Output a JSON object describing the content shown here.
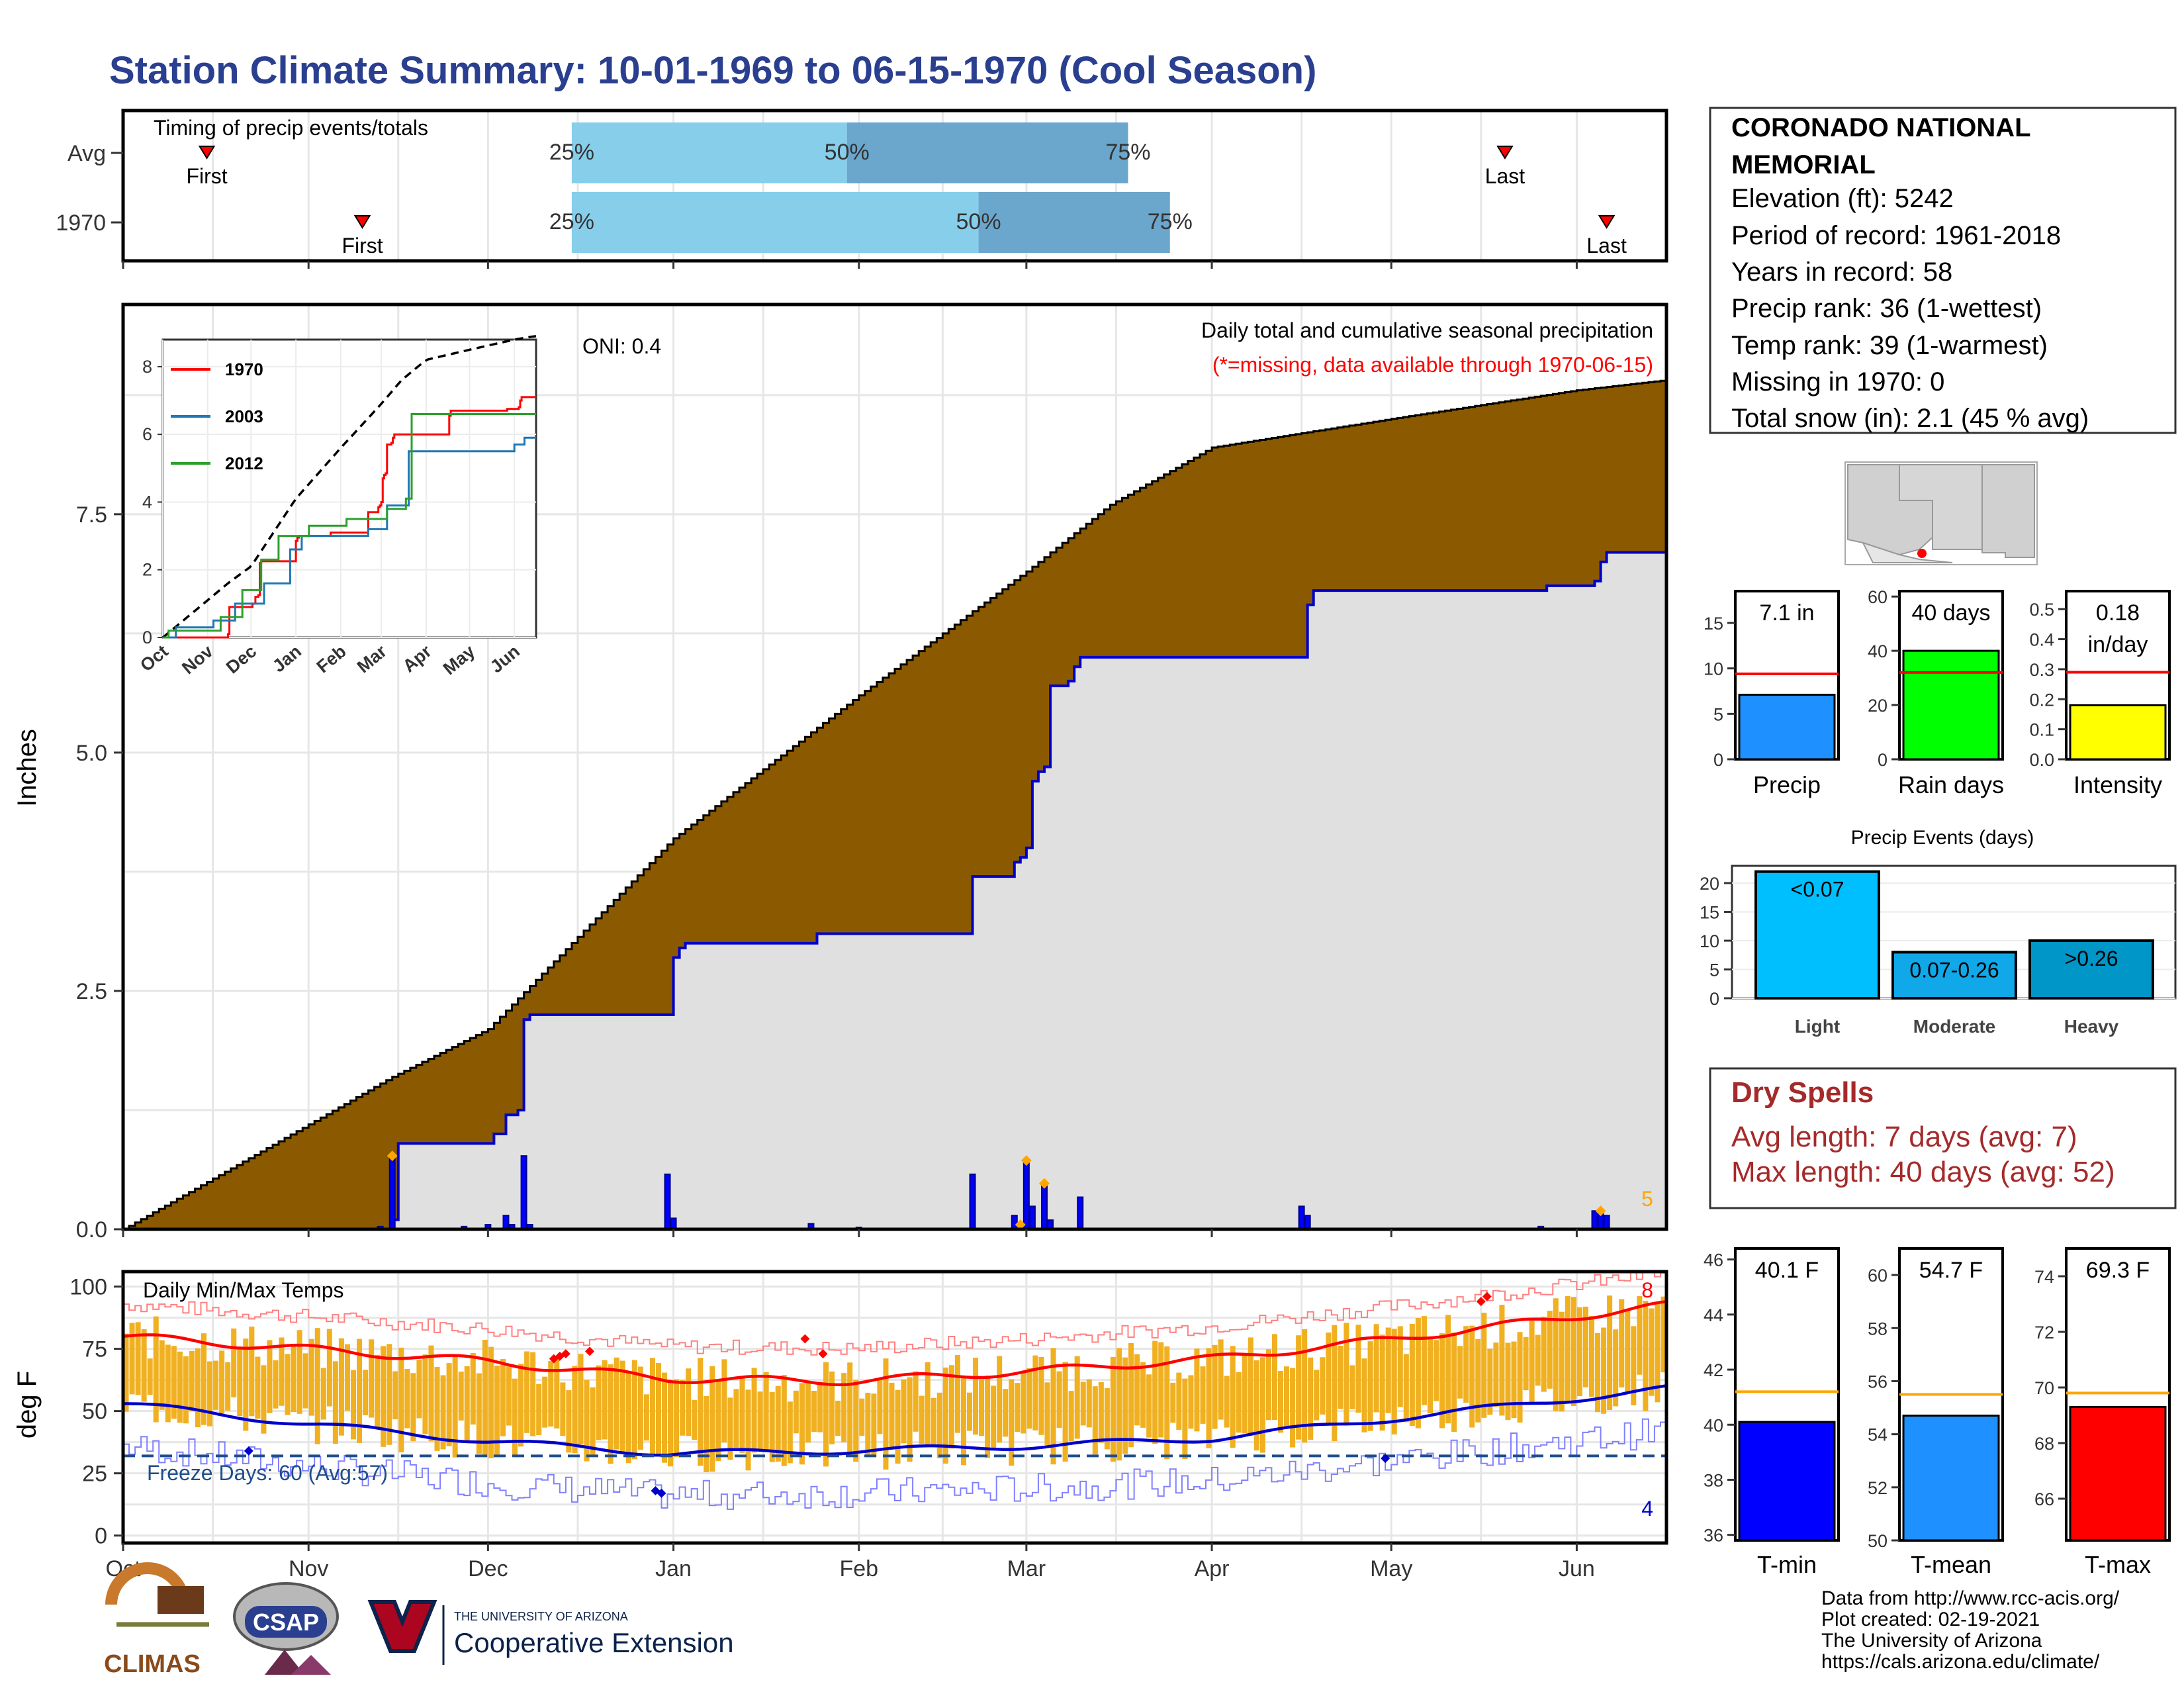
{
  "title": "Station Climate Summary: 10-01-1969 to 06-15-1970 (Cool Season)",
  "colors": {
    "precip_fill": "#8b5a00",
    "avg_fill": "#e0e0e0",
    "avg_line": "#0000cc",
    "bar_light": "#87ceeb",
    "bar_dark": "#6ba6cc",
    "tmax_avg": "#ff0000",
    "tmin_avg": "#0000cc",
    "temp_bar": "#f0b020",
    "freeze": "#1f4e8c"
  },
  "timing": {
    "title": "Timing of precip events/totals",
    "rows": [
      "Avg",
      "1970"
    ],
    "first_label": "First",
    "last_label": "Last",
    "pct_labels": [
      "25%",
      "50%",
      "75%"
    ]
  },
  "main": {
    "ylabel": "Inches",
    "yticks": [
      "0.0",
      "2.5",
      "5.0",
      "7.5"
    ],
    "oni": "ONI: 0.4",
    "desc": "Daily total and cumulative seasonal precipitation",
    "missing_note": "(*=missing, data available through 1970-06-15)",
    "max_marker": "5"
  },
  "inset": {
    "yticks": [
      "0",
      "2",
      "4",
      "6",
      "8"
    ],
    "xticks": [
      "Oct",
      "Nov",
      "Dec",
      "Jan",
      "Feb",
      "Mar",
      "Apr",
      "May",
      "Jun"
    ],
    "legend": [
      {
        "name": "1970",
        "color": "#ff0000"
      },
      {
        "name": "2003",
        "color": "#1f77b4"
      },
      {
        "name": "2012",
        "color": "#2ca02c"
      }
    ]
  },
  "temps": {
    "title": "Daily Min/Max Temps",
    "ylabel": "deg F",
    "yticks": [
      "0",
      "25",
      "50",
      "75",
      "100"
    ],
    "freeze": "Freeze Days: 60 (Avg:57)",
    "max_count": "8",
    "min_count": "4"
  },
  "xaxis": [
    "Oct",
    "Nov",
    "Dec",
    "Jan",
    "Feb",
    "Mar",
    "Apr",
    "May",
    "Jun"
  ],
  "station": {
    "name_line1": "CORONADO NATIONAL",
    "name_line2": "MEMORIAL",
    "elevation": "Elevation (ft): 5242",
    "period": "Period of record: 1961-2018",
    "years": "Years in record: 58",
    "precip_rank": "Precip rank: 36 (1-wettest)",
    "temp_rank": "Temp rank: 39 (1-warmest)",
    "missing": "Missing in 1970: 0",
    "snow": "Total snow (in): 2.1 (45 % avg)"
  },
  "mini_bars": [
    {
      "label": "Precip",
      "value_label": "7.1 in",
      "value": 7.1,
      "avg": 9.4,
      "ymax": 18.5,
      "yticks": [
        "0",
        "5",
        "10",
        "15"
      ],
      "tickvals": [
        0,
        5,
        10,
        15
      ],
      "color": "#1e90ff"
    },
    {
      "label": "Rain days",
      "value_label": "40 days",
      "value": 40,
      "avg": 32,
      "ymax": 62,
      "yticks": [
        "0",
        "20",
        "40",
        "60"
      ],
      "tickvals": [
        0,
        20,
        40,
        60
      ],
      "color": "#00ff00"
    },
    {
      "label": "Intensity",
      "value_label": "0.18",
      "value_label2": "in/day",
      "value": 0.18,
      "avg": 0.29,
      "ymax": 0.56,
      "yticks": [
        "0.0",
        "0.1",
        "0.2",
        "0.3",
        "0.4",
        "0.5"
      ],
      "tickvals": [
        0,
        0.1,
        0.2,
        0.3,
        0.4,
        0.5
      ],
      "color": "#ffff00"
    }
  ],
  "events": {
    "title": "Precip Events (days)",
    "yticks": [
      "0",
      "5",
      "10",
      "15",
      "20"
    ],
    "bars": [
      {
        "label": "Light",
        "inner": "<0.07",
        "value": 22,
        "color": "#00bfff"
      },
      {
        "label": "Moderate",
        "inner": "0.07-0.26",
        "value": 8,
        "color": "#10a8e8"
      },
      {
        "label": "Heavy",
        "inner": ">0.26",
        "value": 10,
        "color": "#0096c8"
      }
    ]
  },
  "dry_spells": {
    "title": "Dry Spells",
    "avg": "Avg length: 7 days (avg: 7)",
    "max": "Max length: 40 days (avg: 52)"
  },
  "temp_bars": [
    {
      "label": "T-min",
      "value_label": "40.1 F",
      "value": 40.1,
      "avg": 41.2,
      "ymin": 35.8,
      "ymax": 46.4,
      "yticks": [
        "36",
        "38",
        "40",
        "42",
        "44",
        "46"
      ],
      "tickvals": [
        36,
        38,
        40,
        42,
        44,
        46
      ],
      "color": "#0000ff"
    },
    {
      "label": "T-mean",
      "value_label": "54.7 F",
      "value": 54.7,
      "avg": 55.5,
      "ymin": 50.0,
      "ymax": 61.0,
      "yticks": [
        "50",
        "52",
        "54",
        "56",
        "58",
        "60"
      ],
      "tickvals": [
        50,
        52,
        54,
        56,
        58,
        60
      ],
      "color": "#1e90ff"
    },
    {
      "label": "T-max",
      "value_label": "69.3 F",
      "value": 69.3,
      "avg": 69.8,
      "ymin": 64.5,
      "ymax": 75.0,
      "yticks": [
        "66",
        "68",
        "70",
        "72",
        "74"
      ],
      "tickvals": [
        66,
        68,
        70,
        72,
        74
      ],
      "color": "#ff0000"
    }
  ],
  "footer": {
    "source": "Data from http://www.rcc-acis.org/",
    "created": "Plot created: 02-19-2021",
    "univ": "The University of Arizona",
    "url": "https://cals.arizona.edu/climate/",
    "logo1": "CLIMAS",
    "logo2": "CSAP",
    "ua_small": "THE UNIVERSITY OF ARIZONA",
    "ua_big": "Cooperative Extension"
  },
  "chart_data": [
    {
      "type": "bar",
      "title": "Timing of precip events/totals",
      "categories": [
        "Avg",
        "1970"
      ],
      "series": [
        {
          "name": "25%",
          "values": [
            "1969-12-15",
            "1969-12-15"
          ]
        },
        {
          "name": "50%",
          "values": [
            "1970-01-30",
            "1970-02-21"
          ]
        },
        {
          "name": "75%",
          "values": [
            "1970-03-18",
            "1970-03-25"
          ]
        },
        {
          "name": "First",
          "values": [
            "1969-10-15",
            "1969-11-10"
          ]
        },
        {
          "name": "Last",
          "values": [
            "1970-05-20",
            "1970-06-06"
          ]
        }
      ]
    },
    {
      "type": "area",
      "title": "Daily total and cumulative seasonal precipitation",
      "ylabel": "Inches",
      "ylim": [
        0,
        9.7
      ],
      "x": [
        "1969-10-01",
        "1969-11-01",
        "1969-11-15",
        "1969-12-01",
        "1970-01-01",
        "1970-02-01",
        "1970-03-01",
        "1970-03-15",
        "1970-04-01",
        "1970-05-01",
        "1970-06-01",
        "1970-06-15"
      ],
      "series": [
        {
          "name": "Avg cumulative",
          "values": [
            0.0,
            1.1,
            1.6,
            2.1,
            4.1,
            5.6,
            6.9,
            7.6,
            8.2,
            8.5,
            8.8,
            8.9
          ]
        },
        {
          "name": "1970 cumulative",
          "values": [
            0.0,
            0.1,
            0.9,
            1.2,
            3.0,
            3.1,
            4.0,
            5.7,
            6.0,
            6.7,
            6.7,
            7.1
          ]
        }
      ]
    },
    {
      "type": "line",
      "title": "Daily Min/Max Temps",
      "ylabel": "deg F",
      "ylim": [
        -3,
        106
      ],
      "x": [
        "Oct",
        "Nov",
        "Dec",
        "Jan",
        "Feb",
        "Mar",
        "Apr",
        "May",
        "Jun"
      ],
      "series": [
        {
          "name": "Avg max",
          "values": [
            80,
            75,
            70,
            63,
            62,
            66,
            71,
            79,
            88
          ]
        },
        {
          "name": "Avg min",
          "values": [
            53,
            45,
            38,
            33,
            34,
            36,
            39,
            47,
            55
          ]
        }
      ]
    }
  ]
}
